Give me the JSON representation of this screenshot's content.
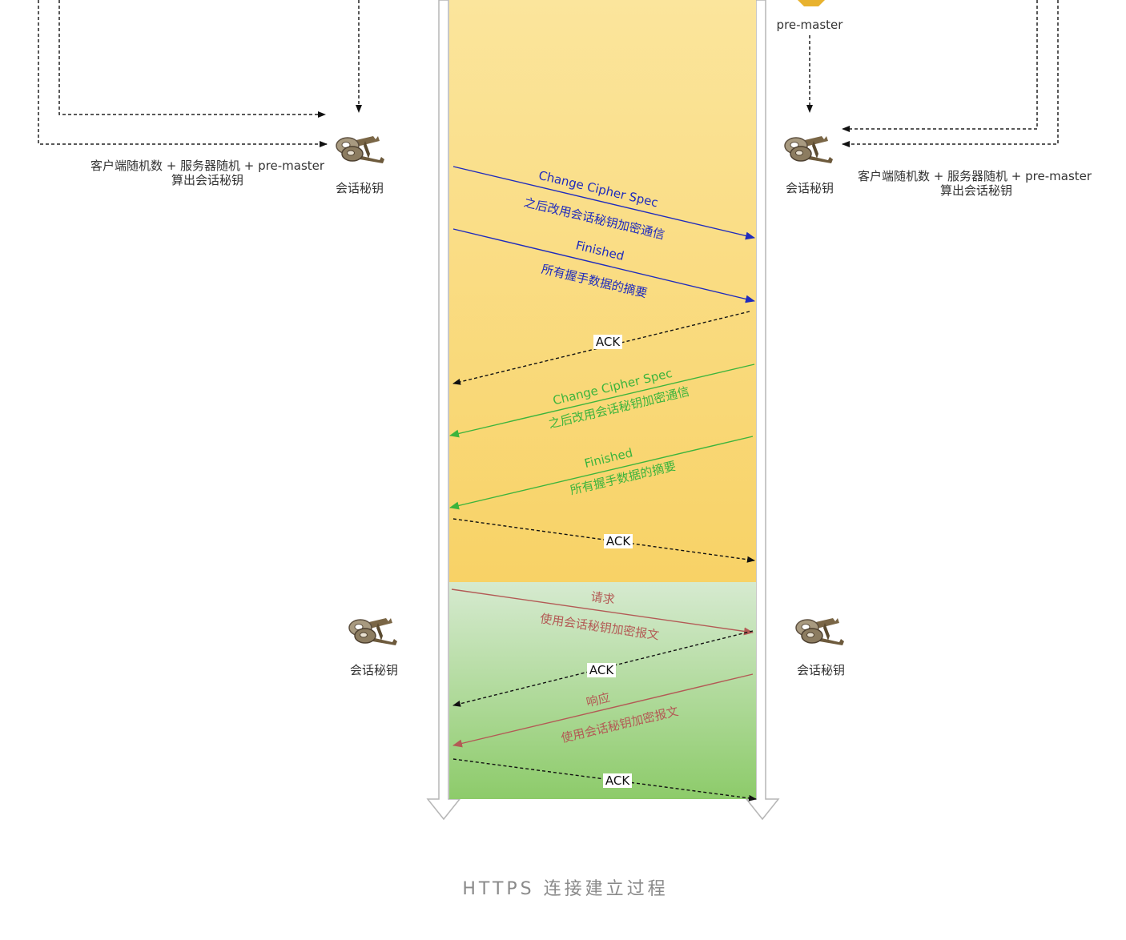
{
  "client": {
    "formula_line1": "客户端随机数 + 服务器随机 +  pre-master",
    "formula_line2": "算出会话秘钥",
    "key_label_top": "会话秘钥",
    "key_label_bottom": "会话秘钥"
  },
  "server": {
    "premaster_label": "pre-master",
    "formula_line1": "客户端随机数 + 服务器随机 +  pre-master",
    "formula_line2": "算出会话秘钥",
    "key_label_top": "会话秘钥",
    "key_label_bottom": "会话秘钥"
  },
  "messages": {
    "client_change_cipher": {
      "title": "Change Cipher Spec",
      "desc": "之后改用会话秘钥加密通信",
      "color": "#1f2bbd"
    },
    "client_finished": {
      "title": "Finished",
      "desc": "所有握手数据的摘要",
      "color": "#1f2bbd"
    },
    "ack1": "ACK",
    "server_change_cipher": {
      "title": "Change Cipher Spec",
      "desc": "之后改用会话秘钥加密通信",
      "color": "#3cb43c"
    },
    "server_finished": {
      "title": "Finished",
      "desc": "所有握手数据的摘要",
      "color": "#3cb43c"
    },
    "ack2": "ACK",
    "request": {
      "title": "请求",
      "desc": "使用会话秘钥加密报文",
      "color": "#b35a55"
    },
    "ack3": "ACK",
    "response": {
      "title": "响应",
      "desc": "使用会话秘钥加密报文",
      "color": "#b35a55"
    },
    "ack4": "ACK"
  },
  "colors": {
    "handshake_band_top": "#fbe59c",
    "handshake_band_bottom": "#f8d266",
    "data_band_top": "#d6ead0",
    "data_band_bottom": "#8dcb6a"
  },
  "caption": "HTTPS 连接建立过程"
}
